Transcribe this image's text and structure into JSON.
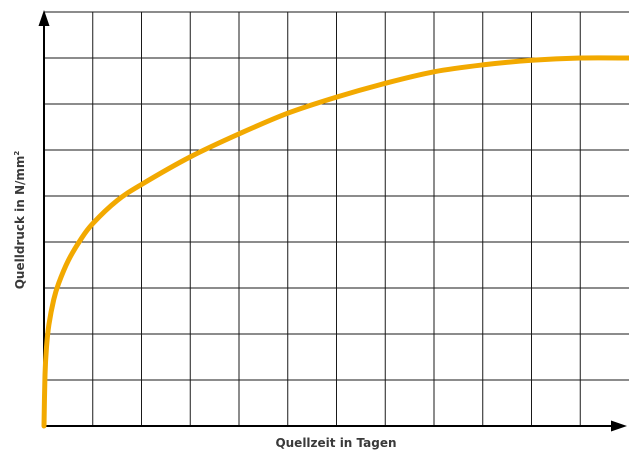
{
  "chart_data": {
    "type": "line",
    "title": "",
    "xlabel": "Quellzeit in Tagen",
    "ylabel_main": "Quelldruck in N/mm",
    "ylabel_sup": "2",
    "xlim": [
      0,
      12
    ],
    "ylim": [
      0,
      9
    ],
    "grid": true,
    "series": [
      {
        "color": "#f2a900",
        "x": [
          0,
          0.02,
          0.05,
          0.1,
          0.2,
          0.3,
          0.5,
          0.75,
          1,
          1.5,
          2,
          3,
          4,
          5,
          6,
          7,
          8,
          9,
          10,
          11,
          12
        ],
        "y": [
          0,
          1.1,
          1.7,
          2.2,
          2.75,
          3.1,
          3.6,
          4.05,
          4.4,
          4.9,
          5.25,
          5.85,
          6.35,
          6.8,
          7.15,
          7.45,
          7.7,
          7.85,
          7.95,
          8.0,
          8.0
        ]
      }
    ]
  },
  "colors": {
    "grid": "#1a1a1a",
    "axis": "#000000",
    "curve": "#f2a900",
    "label": "#3a3a3a"
  }
}
